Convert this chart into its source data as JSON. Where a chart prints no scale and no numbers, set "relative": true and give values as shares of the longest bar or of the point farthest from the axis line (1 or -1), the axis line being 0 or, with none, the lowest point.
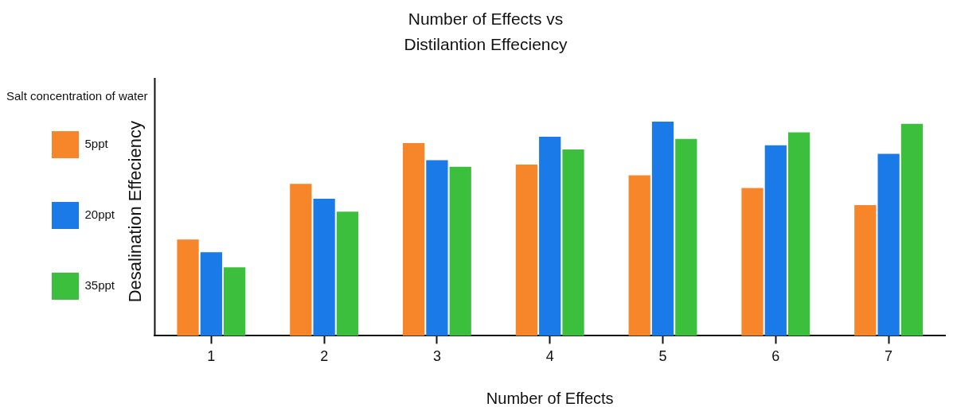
{
  "chart_data": {
    "type": "bar",
    "title": "Number of Effects  vs Distilantion Effeciency",
    "xlabel": "Number of Effects",
    "ylabel": "Desalination Effeciency",
    "legend_title": "Salt concentration of water",
    "legend": "left",
    "relative": true,
    "grid": false,
    "categories": [
      "1",
      "2",
      "3",
      "4",
      "5",
      "6",
      "7"
    ],
    "series": [
      {
        "name": "5ppt",
        "color": "#f7852a",
        "values": [
          0.45,
          0.71,
          0.9,
          0.8,
          0.75,
          0.69,
          0.61
        ]
      },
      {
        "name": "20ppt",
        "color": "#1a7ae8",
        "values": [
          0.39,
          0.64,
          0.82,
          0.93,
          1,
          0.89,
          0.85
        ]
      },
      {
        "name": "35ppt",
        "color": "#3cbf3c",
        "values": [
          0.32,
          0.58,
          0.79,
          0.87,
          0.92,
          0.95,
          0.99
        ]
      }
    ]
  }
}
